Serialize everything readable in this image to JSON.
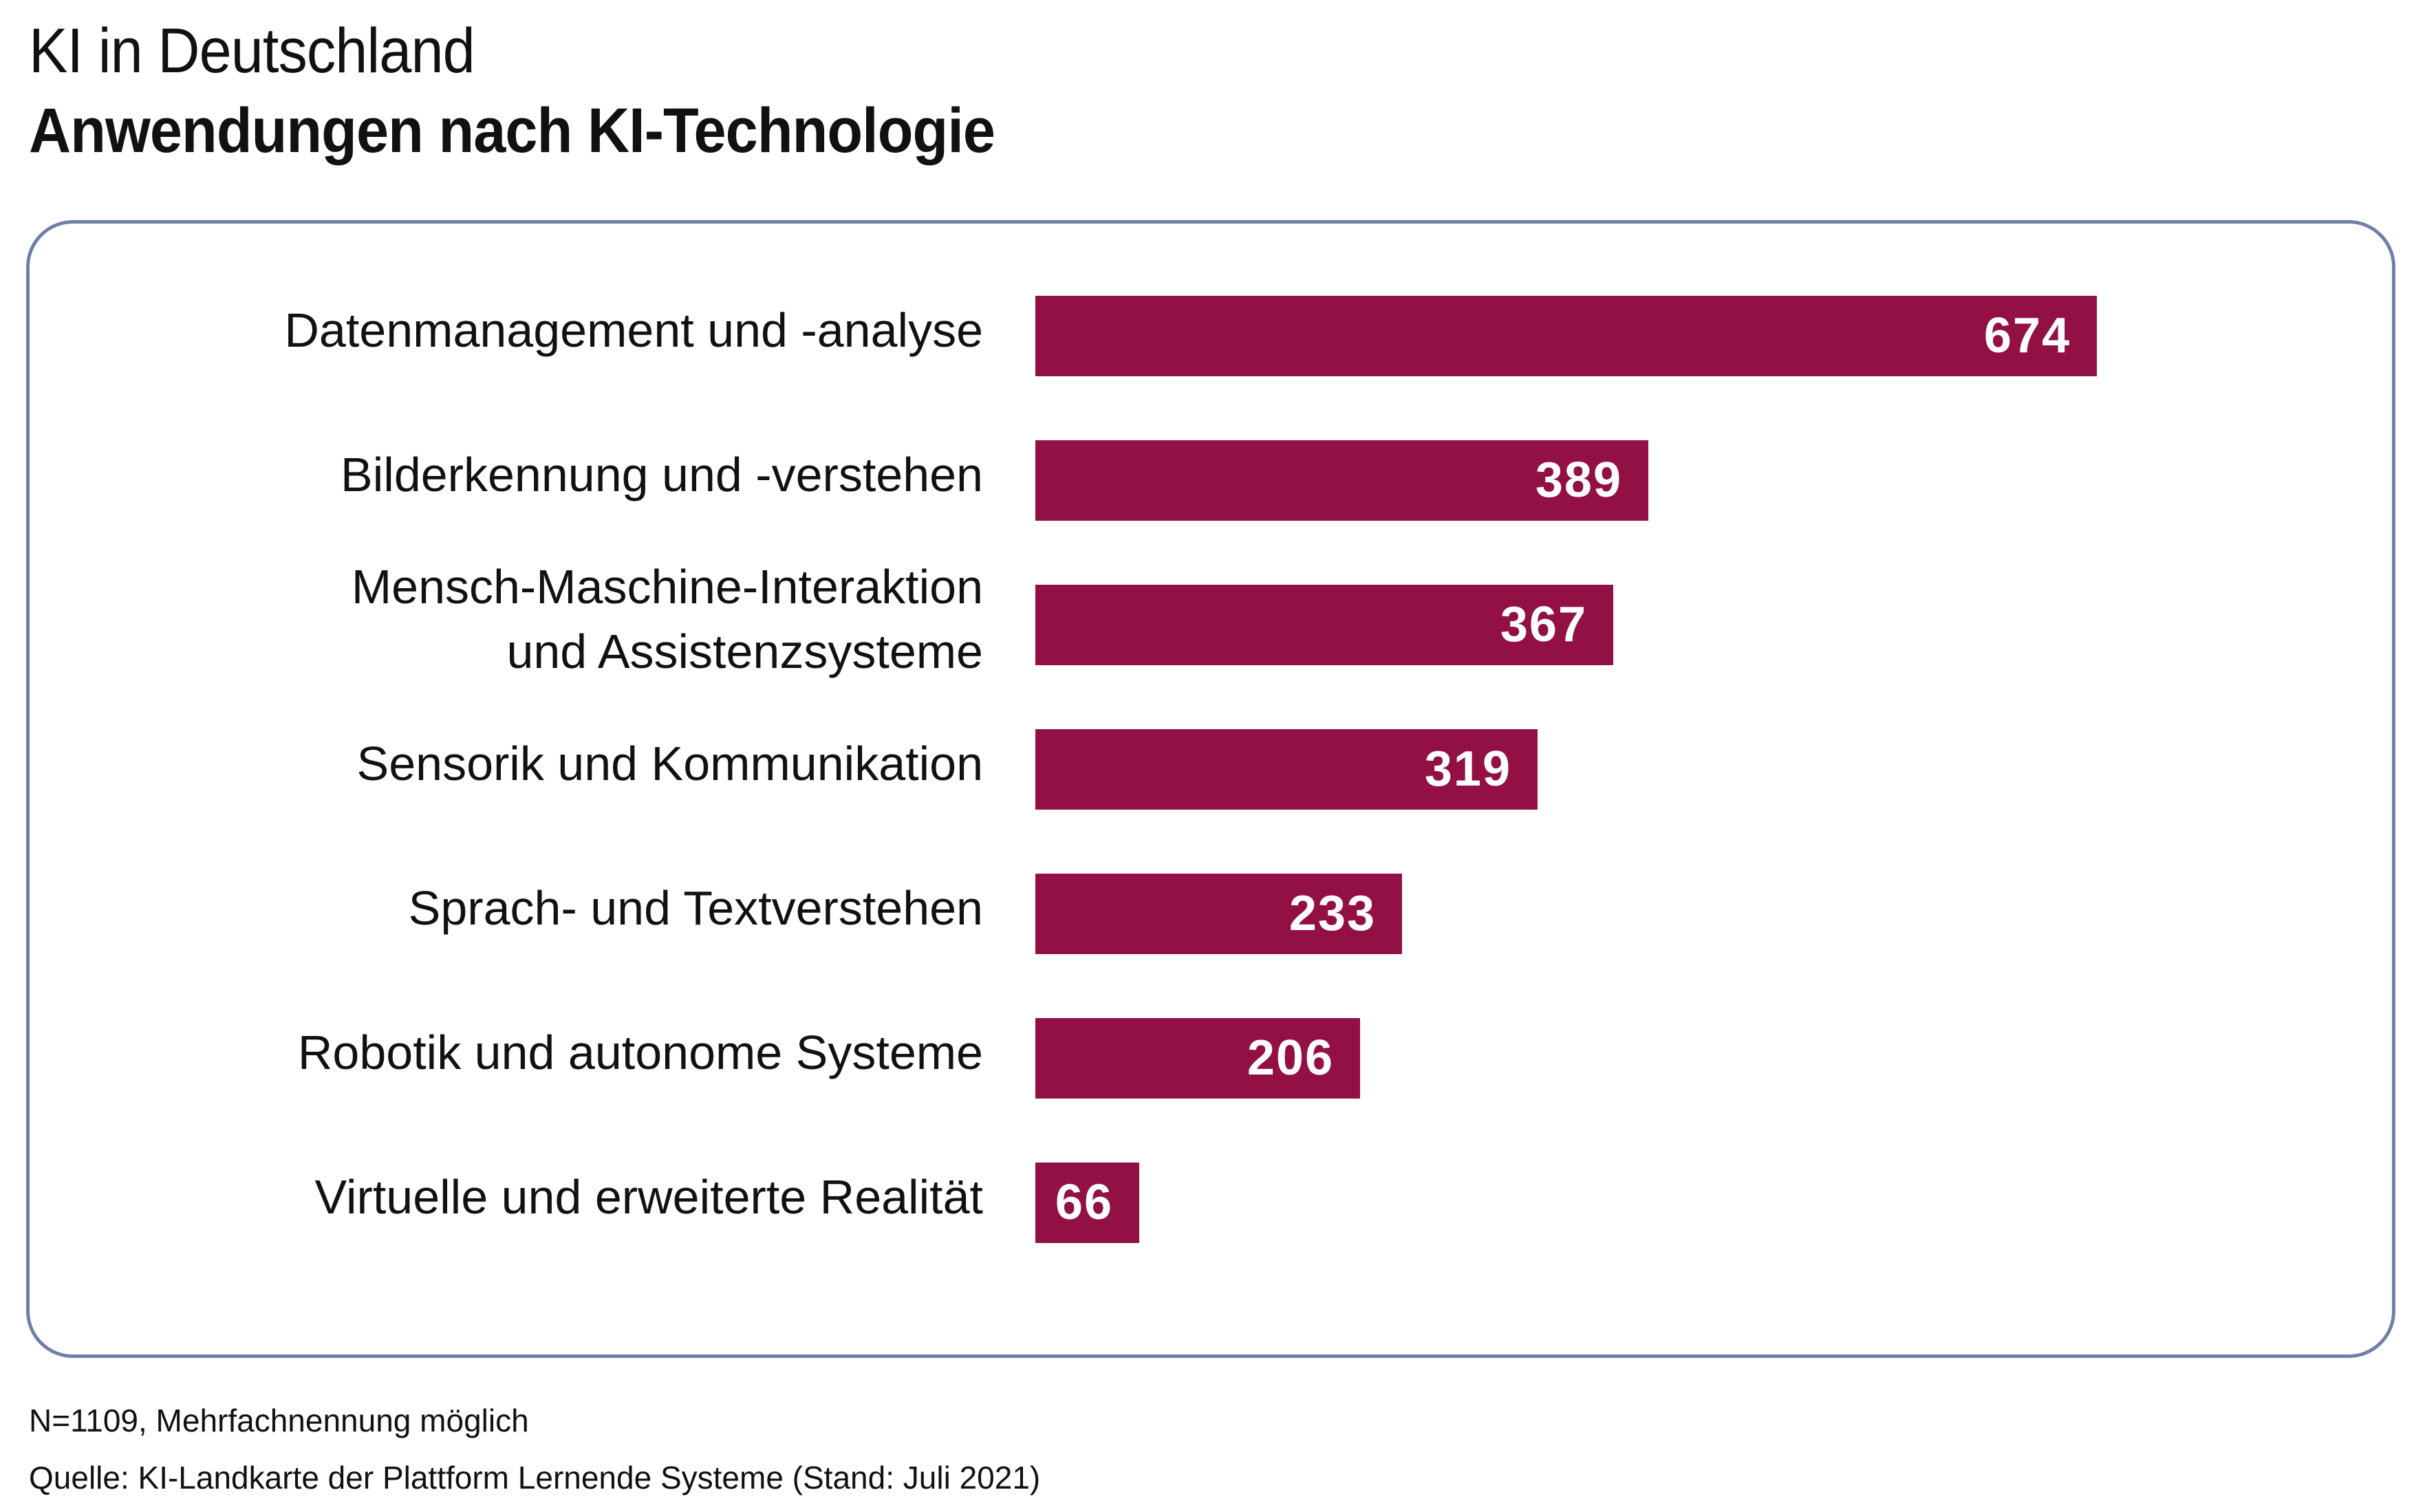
{
  "header": {
    "title": "KI in Deutschland",
    "subtitle": "Anwendungen nach KI-Technologie"
  },
  "colors": {
    "bar": "#921044",
    "frame": "#6e7fa8",
    "value_text": "#ffffff",
    "text": "#111111"
  },
  "chart_data": {
    "type": "bar",
    "orientation": "horizontal",
    "title": "Anwendungen nach KI-Technologie",
    "categories": [
      "Datenmanagement und -analyse",
      "Bilderkennung und -verstehen",
      "Mensch-Maschine-Interaktion und Assistenzsysteme",
      "Sensorik und Kommunikation",
      "Sprach- und Textverstehen",
      "Robotik und autonome Systeme",
      "Virtuelle und erweiterte Realität"
    ],
    "category_label_lines": [
      [
        "Datenmanagement und -analyse"
      ],
      [
        "Bilderkennung und -verstehen"
      ],
      [
        "Mensch-Maschine-Interaktion",
        "und Assistenzsysteme"
      ],
      [
        "Sensorik und Kommunikation"
      ],
      [
        "Sprach- und Textverstehen"
      ],
      [
        "Robotik und autonome Systeme"
      ],
      [
        "Virtuelle und erweiterte Realität"
      ]
    ],
    "values": [
      674,
      389,
      367,
      319,
      233,
      206,
      66
    ],
    "value_labels": [
      "674",
      "389",
      "367",
      "319",
      "233",
      "206",
      "66"
    ],
    "xlabel": "",
    "ylabel": "",
    "xlim": [
      0,
      674
    ],
    "grid": false,
    "legend": "none"
  },
  "footer": {
    "note": "N=1109, Mehrfachnennung möglich",
    "source": "Quelle: KI-Landkarte der Plattform Lernende Systeme (Stand: Juli 2021)"
  }
}
